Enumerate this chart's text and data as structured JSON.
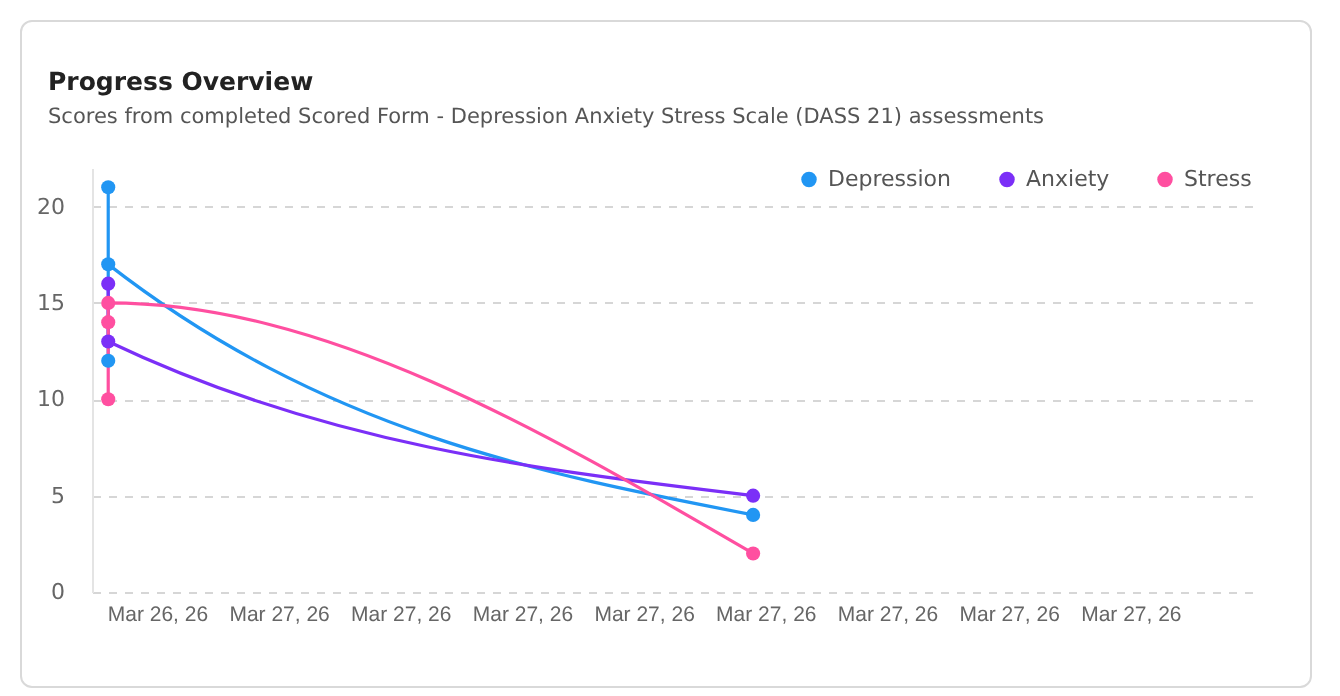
{
  "chart_data": {
    "type": "line",
    "title": "Progress Overview",
    "subtitle": "Scores from completed Scored Form - Depression Anxiety Stress Scale (DASS 21) assessments",
    "series": [
      {
        "name": "Depression",
        "color": "#2196f3",
        "x": [
          "--03-26T19:48",
          "--03-26T19:48",
          "--03-26T19:48",
          "--03-27T11:42"
        ],
        "values": [
          12,
          21,
          17,
          4
        ]
      },
      {
        "name": "Anxiety",
        "color": "#7b2ff7",
        "x": [
          "--03-26T19:48",
          "--03-26T19:48",
          "--03-27T11:42"
        ],
        "values": [
          16,
          13,
          5
        ]
      },
      {
        "name": "Stress",
        "color": "#ff4fa0",
        "x": [
          "--03-26T19:48",
          "--03-26T19:48",
          "--03-26T19:48",
          "--03-27T11:42"
        ],
        "values": [
          10,
          14,
          15,
          2
        ]
      }
    ],
    "xlim": [
      "--03-26T19:24",
      "--03-28T00:00"
    ],
    "xticks": [
      {
        "value": "--03-26T21:00",
        "label": "Mar 26, 26"
      },
      {
        "value": "--03-27T00:00",
        "label": "Mar 27, 26"
      },
      {
        "value": "--03-27T03:00",
        "label": "Mar 27, 26"
      },
      {
        "value": "--03-27T06:00",
        "label": "Mar 27, 26"
      },
      {
        "value": "--03-27T09:00",
        "label": "Mar 27, 26"
      },
      {
        "value": "--03-27T12:00",
        "label": "Mar 27, 26"
      },
      {
        "value": "--03-27T15:00",
        "label": "Mar 27, 26"
      },
      {
        "value": "--03-27T18:00",
        "label": "Mar 27, 26"
      },
      {
        "value": "--03-27T21:00",
        "label": "Mar 27, 26"
      }
    ],
    "ylim": [
      0,
      22
    ],
    "yticks": [
      0,
      5,
      10,
      15,
      20
    ],
    "grid": "y",
    "legend": "top right",
    "marker": "circle",
    "line_style": "solid"
  }
}
